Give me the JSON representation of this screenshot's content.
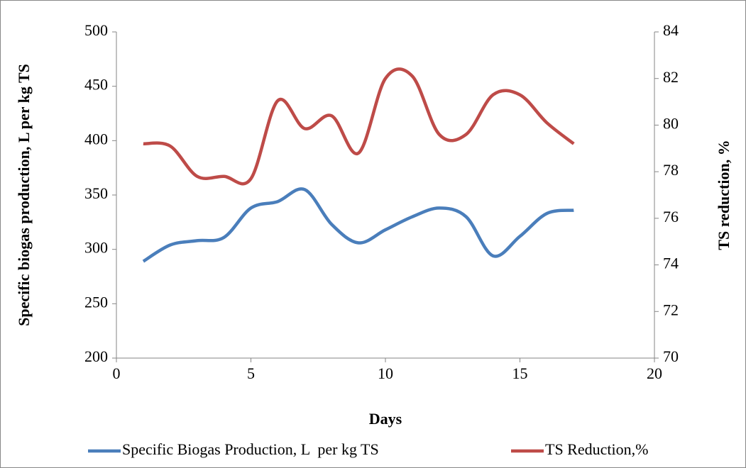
{
  "chart_data": {
    "type": "line",
    "x_label": "Days",
    "y_label": "Specific biogas production, L per kg TS",
    "y2_label": "TS reduction, %",
    "x": [
      1,
      2,
      3,
      4,
      5,
      6,
      7,
      8,
      9,
      10,
      11,
      12,
      13,
      14,
      15,
      16,
      17
    ],
    "series": [
      {
        "name": "Specific Biogas Production, L  per kg TS",
        "color": "#4a7ebb",
        "values": [
          289,
          304,
          308,
          311,
          338,
          344,
          355,
          323,
          306,
          318,
          330,
          338,
          330,
          294,
          312,
          333,
          336
        ]
      },
      {
        "name": "TS Reduction,%",
        "color": "#be4b48",
        "axis": "y2",
        "values": [
          79.2,
          79.1,
          77.8,
          77.8,
          77.7,
          81.05,
          79.85,
          80.4,
          78.8,
          82.0,
          82.1,
          79.6,
          79.6,
          81.3,
          81.3,
          80.1,
          79.2
        ]
      }
    ],
    "xlim": [
      0,
      20
    ],
    "xticks": [
      0,
      5,
      10,
      15,
      20
    ],
    "ylim": [
      200,
      500
    ],
    "yticks": [
      200,
      250,
      300,
      350,
      400,
      450,
      500
    ],
    "y2lim": [
      70,
      84
    ],
    "y2ticks": [
      70,
      72,
      74,
      76,
      78,
      80,
      82,
      84
    ],
    "legend": "bottom",
    "grid": false,
    "smooth": true
  }
}
